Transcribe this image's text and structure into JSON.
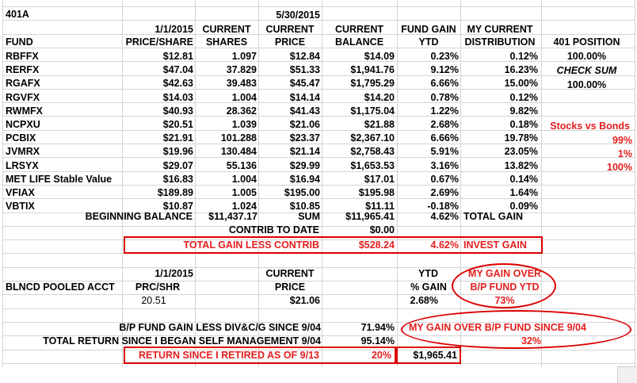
{
  "title": "401A",
  "headers": {
    "price_date": "1/1/2015",
    "price_share": "PRICE/SHARE",
    "current_1": "CURRENT",
    "shares": "SHARES",
    "date2": "5/30/2015",
    "price": "PRICE",
    "current_2": "CURRENT",
    "balance": "BALANCE",
    "fund_gain": "FUND GAIN",
    "ytd": "YTD",
    "my_current": "MY CURRENT",
    "distribution": "DISTRIBUTION",
    "fund": "FUND",
    "position_401": "401 POSITION"
  },
  "funds": [
    {
      "fund": "RBFFX",
      "price_start": "$12.81",
      "shares": "1.097",
      "price_now": "$12.84",
      "balance": "$14.09",
      "gain": "0.23%",
      "dist": "0.12%"
    },
    {
      "fund": "RERFX",
      "price_start": "$47.04",
      "shares": "37.829",
      "price_now": "$51.33",
      "balance": "$1,941.76",
      "gain": "9.12%",
      "dist": "16.23%"
    },
    {
      "fund": "RGAFX",
      "price_start": "$42.63",
      "shares": "39.483",
      "price_now": "$45.47",
      "balance": "$1,795.29",
      "gain": "6.66%",
      "dist": "15.00%"
    },
    {
      "fund": "RGVFX",
      "price_start": "$14.03",
      "shares": "1.004",
      "price_now": "$14.14",
      "balance": "$14.20",
      "gain": "0.78%",
      "dist": "0.12%"
    },
    {
      "fund": "RWMFX",
      "price_start": "$40.93",
      "shares": "28.362",
      "price_now": "$41.43",
      "balance": "$1,175.04",
      "gain": "1.22%",
      "dist": "9.82%"
    },
    {
      "fund": "NCPXU",
      "price_start": "$20.51",
      "shares": "1.039",
      "price_now": "$21.06",
      "balance": "$21.88",
      "gain": "2.68%",
      "dist": "0.18%"
    },
    {
      "fund": "PCBIX",
      "price_start": "$21.91",
      "shares": "101.288",
      "price_now": "$23.37",
      "balance": "$2,367.10",
      "gain": "6.66%",
      "dist": "19.78%"
    },
    {
      "fund": "JVMRX",
      "price_start": "$19.96",
      "shares": "130.484",
      "price_now": "$21.14",
      "balance": "$2,758.43",
      "gain": "5.91%",
      "dist": "23.05%"
    },
    {
      "fund": "LRSYX",
      "price_start": "$29.07",
      "shares": "55.136",
      "price_now": "$29.99",
      "balance": "$1,653.53",
      "gain": "3.16%",
      "dist": "13.82%"
    },
    {
      "fund": "MET LIFE Stable Value",
      "price_start": "$16.83",
      "shares": "1.004",
      "price_now": "$16.94",
      "balance": "$17.01",
      "gain": "0.67%",
      "dist": "0.14%"
    },
    {
      "fund": "VFIAX",
      "price_start": "$189.89",
      "shares": "1.005",
      "price_now": "$195.00",
      "balance": "$195.98",
      "gain": "2.69%",
      "dist": "1.64%"
    },
    {
      "fund": "VBTIX",
      "price_start": "$10.87",
      "shares": "1.024",
      "price_now": "$10.85",
      "balance": "$11.11",
      "gain": "-0.18%",
      "dist": "0.09%"
    }
  ],
  "side": {
    "pos1": "100.00%",
    "check_sum": "CHECK SUM",
    "pos2": "100.00%",
    "stocks_vs_bonds": "Stocks vs Bonds",
    "svb1": "99%",
    "svb2": "1%",
    "svb3": "100%"
  },
  "totals": {
    "beginning_label": "BEGINNING BALANCE",
    "beginning_value": "$11,437.17",
    "sum_label": "SUM",
    "sum_value": "$11,965.41",
    "sum_gain": "4.62%",
    "total_gain_label": "TOTAL GAIN",
    "contrib_label": "CONTRIB TO DATE",
    "contrib_value": "$0.00",
    "less_contrib_label": "TOTAL GAIN LESS CONTRIB",
    "less_contrib_value": "$528.24",
    "invest_gain_pct": "4.62%",
    "invest_gain_label": "INVEST GAIN"
  },
  "pooled": {
    "date": "1/1/2015",
    "current": "CURRENT",
    "ytd": "YTD",
    "my_gain_over": "MY GAIN OVER",
    "account": "BLNCD POOLED ACCT",
    "prc_shr": "PRC/SHR",
    "price": "PRICE",
    "pct_gain": "% GAIN",
    "bp_fund_ytd": "B/P FUND YTD",
    "prc_value": "20.51",
    "price_value": "$21.06",
    "gain_value": "2.68%",
    "over_value": "73%"
  },
  "summary": {
    "bp_gain_label": "B/P FUND GAIN LESS DIV&C/G SINCE 9/04",
    "bp_gain_value": "71.94%",
    "my_gain_since_label": "MY GAIN OVER  B/P FUND  SINCE 9/04",
    "total_return_label": "TOTAL RETURN SINCE I BEGAN SELF MANAGEMENT 9/04",
    "total_return_value": "95.14%",
    "my_gain_since_value": "32%",
    "retired_label": "RETURN SINCE I RETIRED AS OF 9/13",
    "retired_pct": "20%",
    "retired_value": "$1,965.41"
  }
}
